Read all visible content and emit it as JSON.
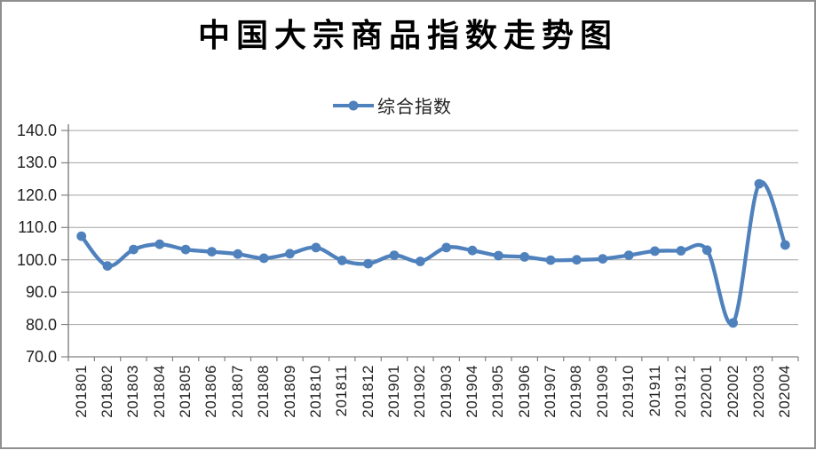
{
  "frame": {
    "background": "#ffffff",
    "border_color": "#8f8f8f"
  },
  "chart_data": {
    "type": "line",
    "title": "中国大宗商品指数走势图",
    "legend": {
      "label": "综合指数",
      "position": "top-center"
    },
    "categories": [
      "201801",
      "201802",
      "201803",
      "201804",
      "201805",
      "201806",
      "201807",
      "201808",
      "201809",
      "201810",
      "201811",
      "201812",
      "201901",
      "201902",
      "201903",
      "201904",
      "201905",
      "201906",
      "201907",
      "201908",
      "201909",
      "201910",
      "201911",
      "201912",
      "202001",
      "202002",
      "202003",
      "202004"
    ],
    "series": [
      {
        "name": "综合指数",
        "color": "#4F81BD",
        "smoothed": true,
        "values": [
          107.3,
          98.1,
          103.2,
          104.8,
          103.2,
          102.5,
          101.8,
          100.5,
          101.9,
          103.8,
          99.8,
          98.8,
          101.4,
          99.5,
          103.8,
          102.9,
          101.3,
          100.9,
          99.9,
          100.0,
          100.3,
          101.4,
          102.7,
          102.8,
          103.0,
          80.5,
          123.5,
          104.6
        ]
      }
    ],
    "ylim": [
      70,
      140
    ],
    "ytick_step": 10,
    "ytick_labels": [
      "140.0",
      "130.0",
      "120.0",
      "110.0",
      "100.0",
      "90.0",
      "80.0",
      "70.0"
    ],
    "grid": "horizontal",
    "gridline_color": "#a3a3a3",
    "axis_line_color": "#808080",
    "axis_text_color": "#1f1f1f",
    "xlabel": "",
    "ylabel": ""
  }
}
